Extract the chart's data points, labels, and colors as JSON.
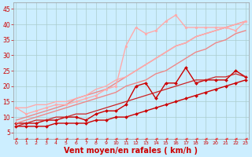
{
  "background_color": "#cceeff",
  "grid_color": "#aacccc",
  "xlabel": "Vent moyen/en rafales ( km/h )",
  "xlabel_color": "#cc0000",
  "xlabel_fontsize": 7,
  "yticks": [
    5,
    10,
    15,
    20,
    25,
    30,
    35,
    40,
    45
  ],
  "xticks": [
    0,
    1,
    2,
    3,
    4,
    5,
    6,
    7,
    8,
    9,
    10,
    11,
    12,
    13,
    14,
    15,
    16,
    17,
    18,
    19,
    20,
    21,
    22,
    23
  ],
  "xlim": [
    -0.3,
    23.3
  ],
  "ylim": [
    3,
    47
  ],
  "series": [
    {
      "x": [
        0,
        1,
        2,
        3,
        4,
        5,
        6,
        7,
        8,
        9,
        10,
        11,
        12,
        13,
        14,
        15,
        16,
        17,
        18,
        19,
        20,
        21,
        22,
        23
      ],
      "y": [
        3,
        3,
        3,
        3,
        3,
        3,
        3,
        3,
        3,
        3,
        3,
        3,
        3,
        3,
        3,
        3,
        3,
        3,
        3,
        3,
        3,
        3,
        3,
        3
      ],
      "color": "#ee3333",
      "lw": 0.8,
      "marker": "<",
      "markersize": 2.5,
      "linestyle": "--"
    },
    {
      "x": [
        0,
        1,
        2,
        3,
        4,
        5,
        6,
        7,
        8,
        9,
        10,
        11,
        12,
        13,
        14,
        15,
        16,
        17,
        18,
        19,
        20,
        21,
        22,
        23
      ],
      "y": [
        7,
        7,
        7,
        7,
        8,
        8,
        8,
        8,
        9,
        9,
        10,
        10,
        11,
        12,
        13,
        14,
        15,
        16,
        17,
        18,
        19,
        20,
        21,
        22
      ],
      "color": "#cc0000",
      "lw": 1.0,
      "marker": "D",
      "markersize": 2.0,
      "linestyle": "-"
    },
    {
      "x": [
        0,
        1,
        2,
        3,
        4,
        5,
        6,
        7,
        8,
        9,
        10,
        11,
        12,
        13,
        14,
        15,
        16,
        17,
        18,
        19,
        20,
        21,
        22,
        23
      ],
      "y": [
        8,
        8,
        8,
        9,
        9,
        10,
        10,
        9,
        11,
        12,
        12,
        14,
        20,
        21,
        16,
        21,
        21,
        26,
        21,
        22,
        22,
        22,
        25,
        23
      ],
      "color": "#cc0000",
      "lw": 1.0,
      "marker": "D",
      "markersize": 2.0,
      "linestyle": "-"
    },
    {
      "x": [
        0,
        1,
        2,
        3,
        4,
        5,
        6,
        7,
        8,
        9,
        10,
        11,
        12,
        13,
        14,
        15,
        16,
        17,
        18,
        19,
        20,
        21,
        22,
        23
      ],
      "y": [
        7,
        8,
        9,
        9,
        10,
        10,
        11,
        11,
        12,
        13,
        14,
        15,
        16,
        17,
        18,
        19,
        20,
        21,
        22,
        22,
        23,
        23,
        24,
        23
      ],
      "color": "#cc2222",
      "lw": 0.9,
      "marker": null,
      "markersize": 0,
      "linestyle": "-"
    },
    {
      "x": [
        0,
        1,
        2,
        3,
        4,
        5,
        6,
        7,
        8,
        9,
        10,
        11,
        12,
        13,
        14,
        15,
        16,
        17,
        18,
        19,
        20,
        21,
        22,
        23
      ],
      "y": [
        8,
        9,
        10,
        11,
        12,
        13,
        14,
        15,
        16,
        17,
        18,
        20,
        21,
        22,
        24,
        25,
        27,
        29,
        31,
        32,
        34,
        35,
        37,
        38
      ],
      "color": "#ee8888",
      "lw": 1.0,
      "marker": null,
      "markersize": 0,
      "linestyle": "-"
    },
    {
      "x": [
        0,
        1,
        2,
        3,
        4,
        5,
        6,
        7,
        8,
        9,
        10,
        11,
        12,
        13,
        14,
        15,
        16,
        17,
        18,
        19,
        20,
        21,
        22,
        23
      ],
      "y": [
        9,
        10,
        11,
        12,
        13,
        14,
        16,
        17,
        18,
        19,
        21,
        23,
        25,
        27,
        29,
        31,
        33,
        34,
        36,
        37,
        38,
        39,
        40,
        41
      ],
      "color": "#ee8888",
      "lw": 1.0,
      "marker": null,
      "markersize": 0,
      "linestyle": "-"
    },
    {
      "x": [
        0,
        1,
        2,
        3,
        4,
        5,
        6,
        7,
        8,
        9,
        10,
        11,
        12,
        13,
        14,
        15,
        16,
        17,
        18,
        19,
        20,
        21,
        22,
        23
      ],
      "y": [
        13,
        11,
        12,
        13,
        14,
        14,
        15,
        16,
        17,
        19,
        20,
        33,
        39,
        37,
        38,
        41,
        43,
        39,
        39,
        39,
        39,
        39,
        38,
        41
      ],
      "color": "#ffaaaa",
      "lw": 1.0,
      "marker": "o",
      "markersize": 2.0,
      "linestyle": "-"
    },
    {
      "x": [
        0,
        1,
        2,
        3,
        4,
        5,
        6,
        7,
        8,
        9,
        10,
        11,
        12,
        13,
        14,
        15,
        16,
        17,
        18,
        19,
        20,
        21,
        22,
        23
      ],
      "y": [
        13,
        13,
        14,
        14,
        15,
        15,
        16,
        17,
        19,
        20,
        22,
        23,
        25,
        27,
        29,
        31,
        33,
        34,
        36,
        37,
        38,
        39,
        40,
        41
      ],
      "color": "#ffaaaa",
      "lw": 1.0,
      "marker": null,
      "markersize": 0,
      "linestyle": "-"
    }
  ]
}
